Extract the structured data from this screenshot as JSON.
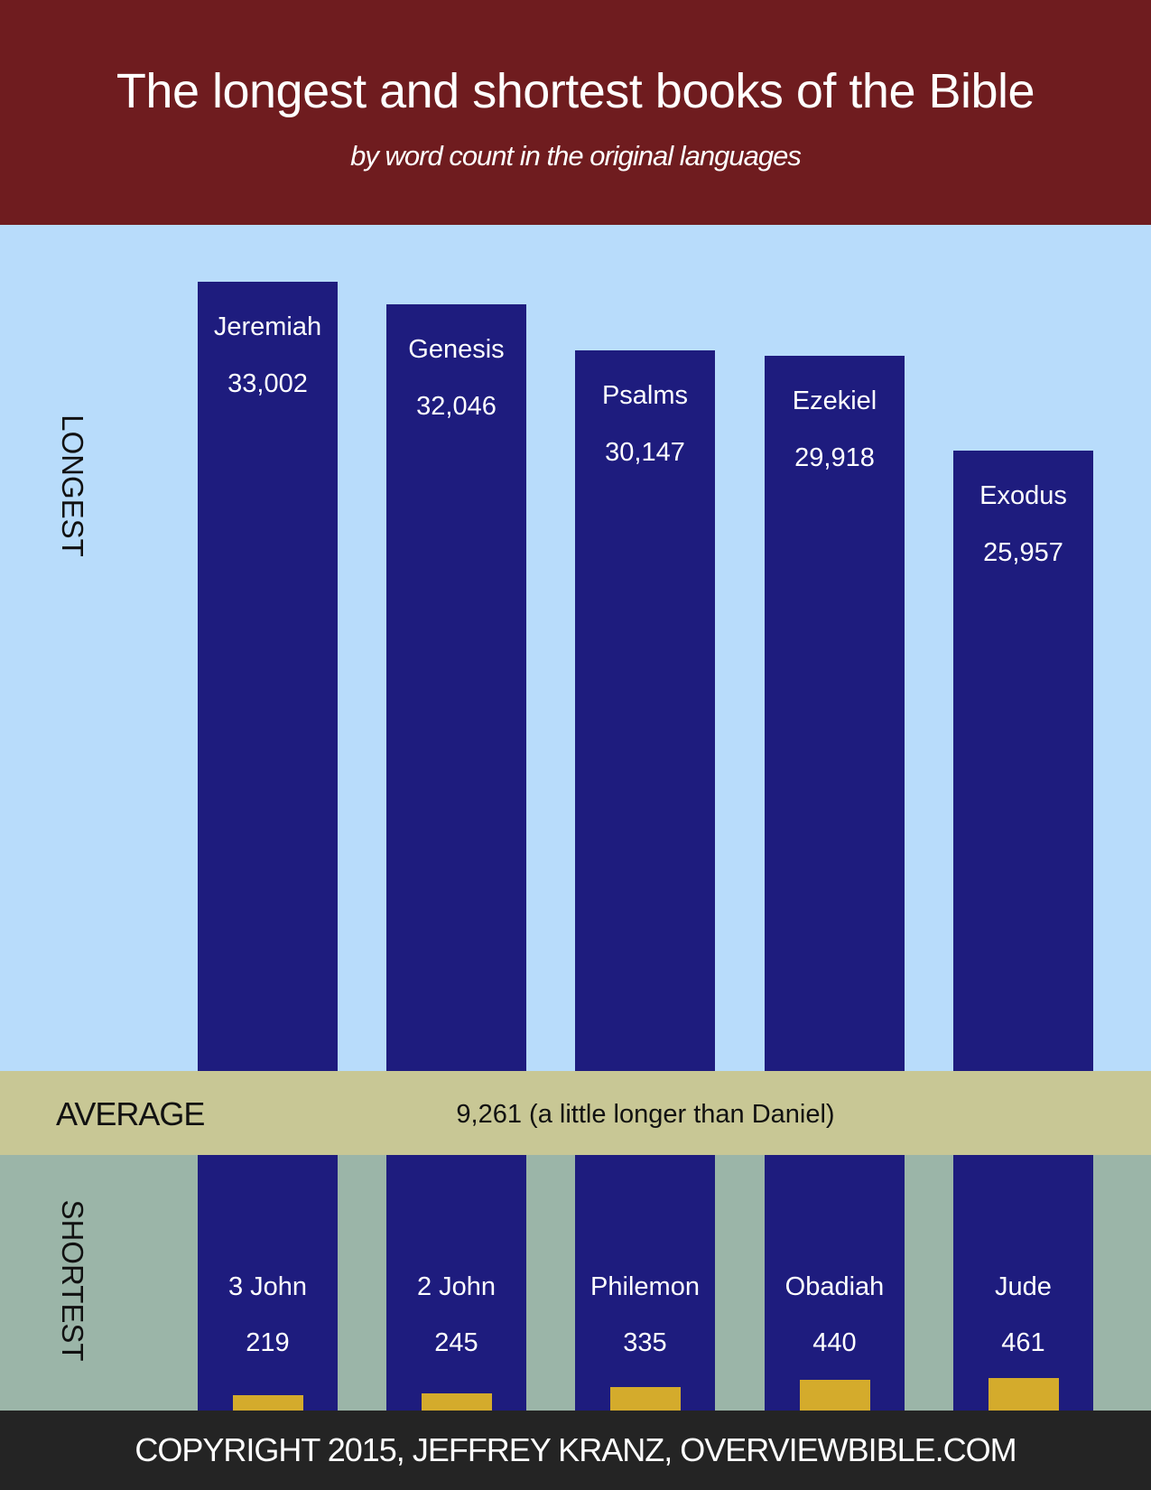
{
  "title": "The longest and shortest books of the Bible",
  "subtitle": "by word count in the original languages",
  "footer": "COPYRIGHT 2015, JEFFREY KRANZ, OVERVIEWBIBLE.COM",
  "colors": {
    "header": "#6f1c1f",
    "longest_bg": "#b8dcfb",
    "average_band": "#c8c795",
    "shortest_bg": "#9bb5a8",
    "bar": "#1e1c7e",
    "short_bar": "#d4ab2c",
    "footer": "#242424"
  },
  "chart_data": [
    {
      "type": "bar",
      "section_label": "LONGEST",
      "categories": [
        "Jeremiah",
        "Genesis",
        "Psalms",
        "Ezekiel",
        "Exodus"
      ],
      "values": [
        33002,
        32046,
        30147,
        29918,
        25957
      ],
      "value_labels": [
        "33,002",
        "32,046",
        "30,147",
        "29,918",
        "25,957"
      ]
    },
    {
      "type": "bar",
      "section_label": "SHORTEST",
      "categories": [
        "3 John",
        "2 John",
        "Philemon",
        "Obadiah",
        "Jude"
      ],
      "values": [
        219,
        245,
        335,
        440,
        461
      ],
      "value_labels": [
        "219",
        "245",
        "335",
        "440",
        "461"
      ]
    }
  ],
  "average": {
    "label": "AVERAGE",
    "value": 9261,
    "text": "9,261 (a little longer than Daniel)"
  }
}
